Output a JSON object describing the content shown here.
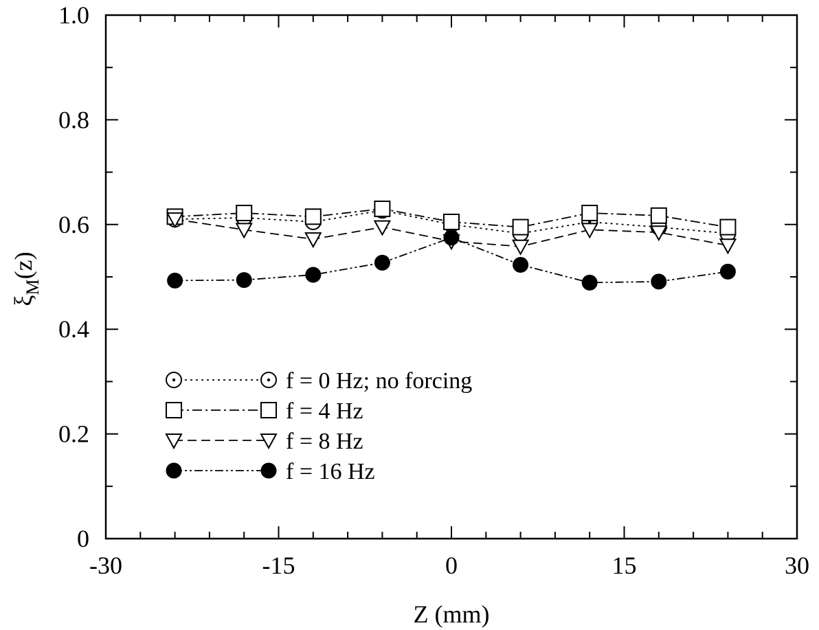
{
  "chart_data": {
    "type": "line",
    "xlabel": "Z (mm)",
    "ylabel": "ξ",
    "ylabel_sub": "M",
    "ylabel_suffix": "(z)",
    "xlim": [
      -30,
      30
    ],
    "ylim": [
      0,
      1.0
    ],
    "x_ticks": [
      -30,
      -15,
      0,
      15,
      30
    ],
    "x_tick_labels": [
      "-30",
      "-15",
      "0",
      "15",
      "30"
    ],
    "x_minor_step": 3,
    "y_ticks": [
      0,
      0.2,
      0.4,
      0.6,
      0.8,
      1.0
    ],
    "y_tick_labels": [
      "0",
      "0.2",
      "0.4",
      "0.6",
      "0.8",
      "1.0"
    ],
    "y_minor_step": 0.1,
    "grid": false,
    "legend_position": "lower-left",
    "x": [
      -24,
      -18,
      -12,
      -6,
      0,
      6,
      12,
      18,
      24
    ],
    "series": [
      {
        "name": "f = 0 Hz; no forcing",
        "marker": "circle-dot",
        "dash": "dotted",
        "values": [
          0.61,
          0.613,
          0.605,
          0.627,
          0.6,
          0.583,
          0.605,
          0.595,
          0.583
        ]
      },
      {
        "name": "f = 4 Hz",
        "marker": "square",
        "dash": "dash-dot",
        "values": [
          0.615,
          0.622,
          0.615,
          0.63,
          0.605,
          0.595,
          0.622,
          0.617,
          0.595
        ]
      },
      {
        "name": "f = 8 Hz",
        "marker": "triangle-down",
        "dash": "dashed",
        "values": [
          0.61,
          0.59,
          0.572,
          0.595,
          0.568,
          0.558,
          0.59,
          0.585,
          0.56
        ]
      },
      {
        "name": "f = 16 Hz",
        "marker": "filled-circle",
        "dash": "dash-dot-dot",
        "values": [
          0.493,
          0.494,
          0.504,
          0.527,
          0.575,
          0.523,
          0.489,
          0.491,
          0.51
        ]
      }
    ]
  }
}
